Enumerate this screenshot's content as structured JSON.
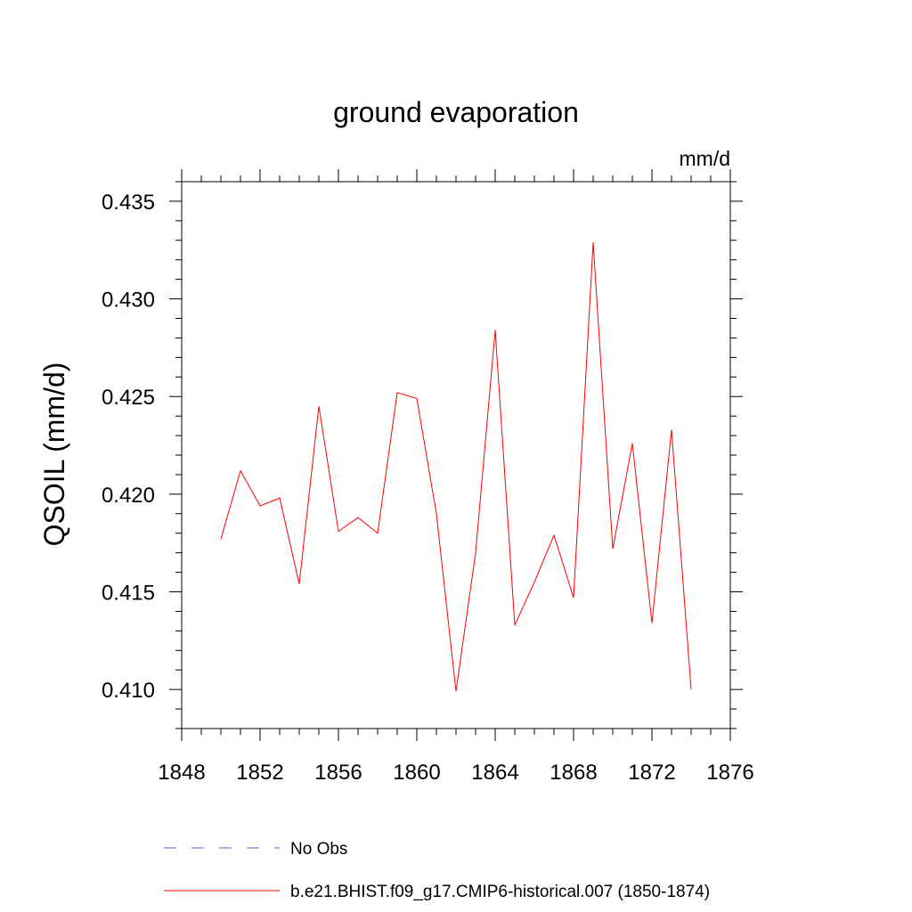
{
  "chart_data": {
    "type": "line",
    "title": "ground evaporation",
    "units": "mm/d",
    "xlabel": "",
    "ylabel": "QSOIL  (mm/d)",
    "xlim": [
      1848,
      1876
    ],
    "ylim": [
      0.408,
      0.436
    ],
    "xticks": [
      1848,
      1852,
      1856,
      1860,
      1864,
      1868,
      1872,
      1876
    ],
    "xtick_labels": [
      "1848",
      "1852",
      "1856",
      "1860",
      "1864",
      "1868",
      "1872",
      "1876"
    ],
    "yticks": [
      0.41,
      0.415,
      0.42,
      0.425,
      0.43,
      0.435
    ],
    "ytick_labels": [
      "0.410",
      "0.415",
      "0.420",
      "0.425",
      "0.430",
      "0.435"
    ],
    "grid": false,
    "series": [
      {
        "name": "b.e21.BHIST.f09_g17.CMIP6-historical.007 (1850-1874)",
        "color": "#ff0000",
        "x": [
          1850,
          1851,
          1852,
          1853,
          1854,
          1855,
          1856,
          1857,
          1858,
          1859,
          1860,
          1861,
          1862,
          1863,
          1864,
          1865,
          1866,
          1867,
          1868,
          1869,
          1870,
          1871,
          1872,
          1873,
          1874
        ],
        "y": [
          0.4177,
          0.4212,
          0.4194,
          0.4198,
          0.4154,
          0.4245,
          0.4181,
          0.4188,
          0.418,
          0.4252,
          0.4249,
          0.419,
          0.4099,
          0.417,
          0.4284,
          0.4133,
          0.4155,
          0.4179,
          0.4147,
          0.4329,
          0.4172,
          0.4226,
          0.4134,
          0.4233,
          0.41
        ]
      }
    ],
    "legend": {
      "placement": "bottom",
      "entries": [
        {
          "label": "No Obs",
          "color": "#6a5acd",
          "style": "dashed"
        },
        {
          "label": "b.e21.BHIST.f09_g17.CMIP6-historical.007 (1850-1874)",
          "color": "#ff0000",
          "style": "solid"
        }
      ]
    }
  }
}
